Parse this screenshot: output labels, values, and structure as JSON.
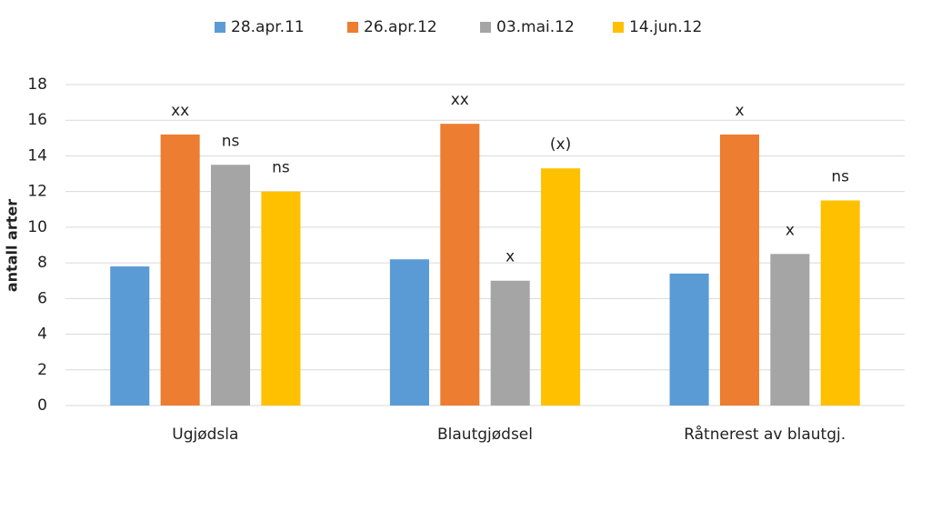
{
  "chart_data": {
    "type": "bar",
    "y_label": "antall arter",
    "categories": [
      "Ugjødsla",
      "Blautgjødsel",
      "Råtnerest av blautgj."
    ],
    "series": [
      {
        "name": "28.apr.11",
        "color": "#5b9bd5",
        "values": [
          7.8,
          8.2,
          7.4
        ]
      },
      {
        "name": "26.apr.12",
        "color": "#ed7d31",
        "values": [
          15.2,
          15.8,
          15.2
        ],
        "annotations": [
          "xx",
          "xx",
          "x"
        ]
      },
      {
        "name": "03.mai.12",
        "color": "#a5a5a5",
        "values": [
          13.5,
          7.0,
          8.5
        ],
        "annotations": [
          "ns",
          "x",
          "x"
        ]
      },
      {
        "name": "14.jun.12",
        "color": "#ffc000",
        "values": [
          12.0,
          13.3,
          11.5
        ],
        "annotations": [
          "ns",
          "(x)",
          "ns"
        ]
      }
    ],
    "ylim": [
      0,
      18
    ],
    "yticks": [
      0,
      2,
      4,
      6,
      8,
      10,
      12,
      14,
      16,
      18
    ],
    "grid": true,
    "legend": "top"
  }
}
